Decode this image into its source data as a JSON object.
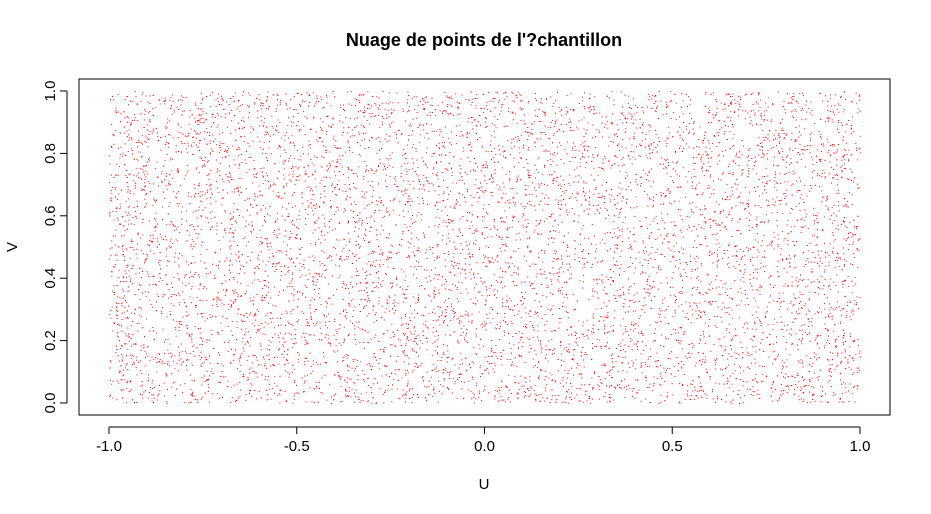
{
  "chart_data": {
    "type": "scatter",
    "title": "Nuage de points de l'?chantillon",
    "xlabel": "U",
    "ylabel": "V",
    "xlim": [
      -1.0,
      1.0
    ],
    "ylim": [
      0.0,
      1.0
    ],
    "x_ticks": [
      -1.0,
      -0.5,
      0.0,
      0.5,
      1.0
    ],
    "x_tick_labels": [
      "-1.0",
      "-0.5",
      "0.0",
      "0.5",
      "1.0"
    ],
    "y_ticks": [
      0.0,
      0.2,
      0.4,
      0.6,
      0.8,
      1.0
    ],
    "y_tick_labels": [
      "0.0",
      "0.2",
      "0.4",
      "0.6",
      "0.8",
      "1.0"
    ],
    "grid": false,
    "legend": "none",
    "point_color": "#ff0000",
    "point_count_estimate": 10000,
    "distribution": "points approximately uniform over U in [-1, 1] and V in [0, 1]"
  }
}
